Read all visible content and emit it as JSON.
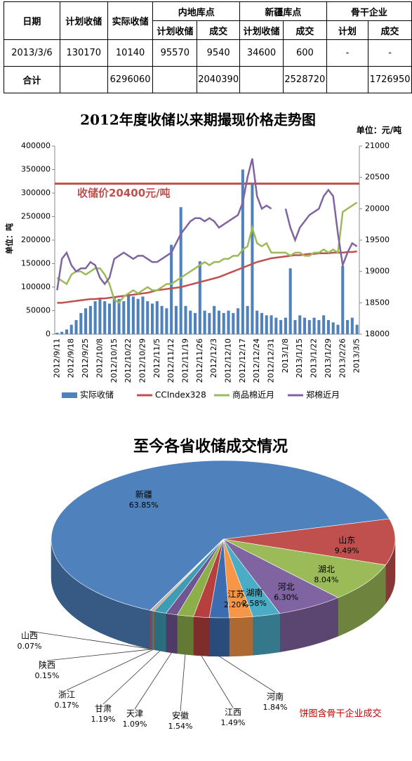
{
  "table": {
    "headers": [
      "日期",
      "计划收储",
      "实际收储"
    ],
    "groups": [
      {
        "label": "内地库点",
        "sub": [
          "计划收储",
          "成交"
        ]
      },
      {
        "label": "新疆库点",
        "sub": [
          "计划收储",
          "成交"
        ]
      },
      {
        "label": "骨干企业",
        "sub": [
          "计划",
          "成交"
        ]
      }
    ],
    "rows": [
      [
        "2013/3/6",
        "130170",
        "10140",
        "95570",
        "9540",
        "34600",
        "600",
        "-",
        "-"
      ],
      [
        "合计",
        null,
        "6296060",
        null,
        "2040390",
        null,
        "2528720",
        null,
        "1726950"
      ]
    ]
  },
  "chart_data": [
    {
      "type": "bar-line",
      "title": "2012年度收储以来期撮现价格走势图",
      "unit_label": "单位：元/吨",
      "ylabel": "单位：吨",
      "categories": [
        "2012/9/11",
        null,
        null,
        "2012/9/18",
        null,
        null,
        "2012/9/25",
        null,
        null,
        "2012/10/8",
        null,
        null,
        "2012/10/15",
        null,
        null,
        "2012/10/22",
        null,
        null,
        "2012/10/29",
        null,
        null,
        "2012/11/5",
        null,
        null,
        "2012/11/12",
        null,
        null,
        "2012/11/19",
        null,
        null,
        "2012/11/26",
        null,
        null,
        "2012/12/3",
        null,
        null,
        "2012/12/10",
        null,
        null,
        "2012/12/17",
        null,
        null,
        "2012/12/24",
        null,
        null,
        "2012/12/31",
        null,
        null,
        "2013/1/8",
        null,
        null,
        "2013/1/15",
        null,
        null,
        "2013/1/22",
        null,
        null,
        "2013/1/29",
        null,
        null,
        "2013/2/26",
        null,
        null,
        "2013/3/5"
      ],
      "series": [
        {
          "name": "实际收储",
          "type": "bar",
          "color": "#4F81BD",
          "values": [
            3000,
            5000,
            10000,
            20000,
            30000,
            45000,
            55000,
            60000,
            70000,
            75000,
            70000,
            65000,
            80000,
            75000,
            70000,
            85000,
            80000,
            75000,
            80000,
            70000,
            65000,
            70000,
            60000,
            55000,
            190000,
            60000,
            270000,
            60000,
            50000,
            45000,
            155000,
            50000,
            45000,
            60000,
            50000,
            45000,
            50000,
            45000,
            55000,
            350000,
            60000,
            320000,
            50000,
            45000,
            40000,
            40000,
            35000,
            30000,
            35000,
            140000,
            30000,
            40000,
            35000,
            30000,
            35000,
            30000,
            40000,
            30000,
            25000,
            20000,
            145000,
            30000,
            35000,
            20000
          ]
        },
        {
          "name": "CCIndex328",
          "type": "line",
          "axis": "y2",
          "color": "#C0504D",
          "values": [
            18500,
            18500,
            18510,
            18520,
            18530,
            18540,
            18550,
            18560,
            18560,
            18570,
            18570,
            18580,
            18590,
            18600,
            18610,
            18620,
            18630,
            18640,
            18650,
            18660,
            18680,
            18700,
            18710,
            18720,
            18730,
            18740,
            18750,
            18770,
            18790,
            18810,
            18830,
            18850,
            18870,
            18890,
            18910,
            18940,
            18970,
            19000,
            19030,
            19060,
            19090,
            19120,
            19150,
            19170,
            19190,
            19210,
            19220,
            19230,
            19240,
            19250,
            19260,
            19260,
            19270,
            19280,
            19280,
            19290,
            19290,
            19290,
            19300,
            19300,
            19300,
            19310,
            19310,
            19320
          ]
        },
        {
          "name": "商品棉近月",
          "type": "line",
          "axis": "y2",
          "color": "#9BBB59",
          "values": [
            18900,
            18850,
            18800,
            18950,
            19000,
            19000,
            18950,
            19000,
            19050,
            19050,
            18950,
            18800,
            18550,
            18500,
            18600,
            18650,
            18700,
            18650,
            18700,
            18750,
            18700,
            18700,
            18750,
            18800,
            18800,
            18850,
            18900,
            18950,
            19000,
            19050,
            19100,
            19150,
            19100,
            19150,
            19150,
            19200,
            19200,
            19250,
            19250,
            19350,
            19400,
            19700,
            19450,
            19400,
            19450,
            19300,
            19300,
            19300,
            19300,
            19250,
            19300,
            19300,
            19250,
            19250,
            19300,
            19300,
            19350,
            19300,
            19350,
            19300,
            19950,
            20000,
            20050,
            20100
          ]
        },
        {
          "name": "郑棉近月",
          "type": "line",
          "axis": "y2",
          "color": "#8064A2",
          "values": [
            18700,
            19200,
            19300,
            19100,
            19000,
            19050,
            19050,
            19150,
            19100,
            18900,
            18800,
            18900,
            19200,
            19250,
            19300,
            19250,
            19200,
            19250,
            19250,
            19200,
            19150,
            19150,
            19200,
            19250,
            19300,
            19450,
            19600,
            19700,
            19800,
            19850,
            19850,
            19800,
            19850,
            19800,
            19700,
            19750,
            19800,
            19850,
            19900,
            20100,
            20500,
            20800,
            20200,
            20000,
            20050,
            20000,
            null,
            null,
            20000,
            19700,
            19500,
            19700,
            19800,
            19900,
            19950,
            20000,
            20200,
            20300,
            20200,
            19600,
            19100,
            19300,
            19450,
            19400
          ]
        }
      ],
      "ylim": [
        0,
        400000
      ],
      "yticks": [
        0,
        50000,
        100000,
        150000,
        200000,
        250000,
        300000,
        350000,
        400000
      ],
      "y2lim": [
        18000,
        21000
      ],
      "y2ticks": [
        18000,
        18500,
        19000,
        19500,
        20000,
        20500,
        21000
      ],
      "annotations": [
        {
          "text": "收储价20400元/吨",
          "value": 20400,
          "axis": "y2",
          "color": "#C0504D"
        }
      ]
    },
    {
      "type": "pie",
      "title": "至今各省收储成交情况",
      "note": "饼图含骨干企业成交",
      "categories": [
        "山东",
        "湖北",
        "河北",
        "湖南",
        "江苏",
        "河南",
        "江西",
        "安徽",
        "天津",
        "甘肃",
        "浙江",
        "陕西",
        "山西",
        "新疆"
      ],
      "values": [
        9.49,
        8.04,
        6.3,
        2.58,
        2.2,
        1.84,
        1.49,
        1.54,
        1.09,
        1.19,
        0.17,
        0.15,
        0.07,
        63.85
      ],
      "value_labels": [
        "9.49%",
        "8.04%",
        "6.30%",
        "2.58%",
        "2.20%",
        "1.84%",
        "1.49%",
        "1.54%",
        "1.09%",
        "1.19%",
        "0.17%",
        "0.15%",
        "0.07%",
        "63.85%"
      ],
      "colors": [
        "#C0504D",
        "#9BBB59",
        "#8064A2",
        "#4BACC6",
        "#F79646",
        "#3C6DB0",
        "#B5403D",
        "#8DAF4A",
        "#6F5592",
        "#3E9CB5",
        "#E4853A",
        "#5B88C0",
        "#C96A67",
        "#4F81BD"
      ]
    }
  ]
}
